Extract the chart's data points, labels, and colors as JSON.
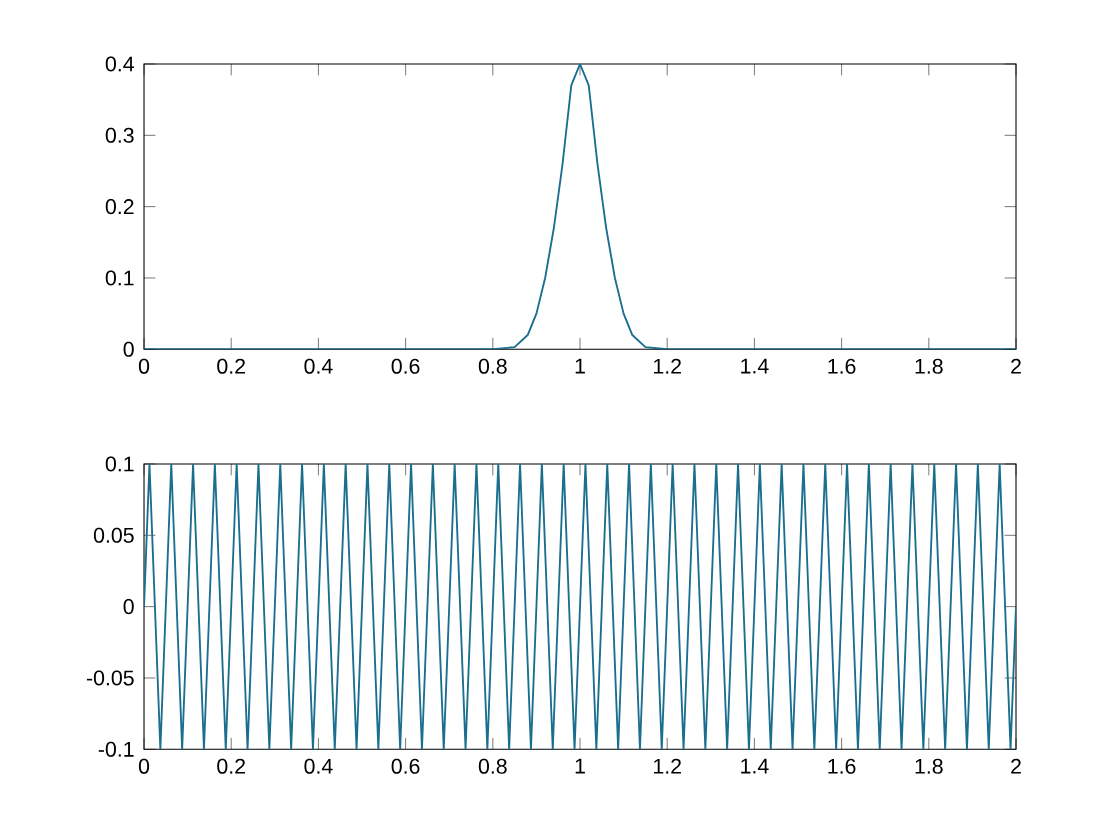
{
  "chart_data": [
    {
      "type": "line",
      "x": [
        0,
        0.2,
        0.4,
        0.6,
        0.8,
        0.85,
        0.88,
        0.9,
        0.92,
        0.94,
        0.96,
        0.98,
        1.0,
        1.02,
        1.04,
        1.06,
        1.08,
        1.1,
        1.12,
        1.15,
        1.2,
        1.4,
        1.6,
        1.8,
        2.0
      ],
      "series": [
        {
          "color": "#1a6e8e",
          "values": [
            0,
            0,
            0,
            0,
            0,
            0.003,
            0.02,
            0.05,
            0.1,
            0.17,
            0.26,
            0.37,
            0.4,
            0.37,
            0.26,
            0.17,
            0.1,
            0.05,
            0.02,
            0.003,
            0,
            0,
            0,
            0,
            0
          ]
        }
      ],
      "xlim": [
        0,
        2
      ],
      "ylim": [
        0,
        0.4
      ],
      "xticks": [
        0,
        0.2,
        0.4,
        0.6,
        0.8,
        1,
        1.2,
        1.4,
        1.6,
        1.8,
        2
      ],
      "yticks": [
        0,
        0.1,
        0.2,
        0.3,
        0.4
      ]
    },
    {
      "type": "line",
      "x": [
        0,
        0.0125,
        0.0375,
        0.0625,
        0.0875,
        0.1125,
        0.1375,
        0.1625,
        0.1875,
        0.2125,
        0.2375,
        0.2625,
        0.2875,
        0.3125,
        0.3375,
        0.3625,
        0.3875,
        0.4125,
        0.4375,
        0.4625,
        0.4875,
        0.5125,
        0.5375,
        0.5625,
        0.5875,
        0.6125,
        0.6375,
        0.6625,
        0.6875,
        0.7125,
        0.7375,
        0.7625,
        0.7875,
        0.8125,
        0.8375,
        0.8625,
        0.8875,
        0.9125,
        0.9375,
        0.9625,
        0.9875,
        1.0125,
        1.0375,
        1.0625,
        1.0875,
        1.1125,
        1.1375,
        1.1625,
        1.1875,
        1.2125,
        1.2375,
        1.2625,
        1.2875,
        1.3125,
        1.3375,
        1.3625,
        1.3875,
        1.4125,
        1.4375,
        1.4625,
        1.4875,
        1.5125,
        1.5375,
        1.5625,
        1.5875,
        1.6125,
        1.6375,
        1.6625,
        1.6875,
        1.7125,
        1.7375,
        1.7625,
        1.7875,
        1.8125,
        1.8375,
        1.8625,
        1.8875,
        1.9125,
        1.9375,
        1.9625,
        1.9875,
        2
      ],
      "series": [
        {
          "color": "#1a6e8e",
          "values": [
            0,
            0.1,
            -0.1,
            0.1,
            -0.1,
            0.1,
            -0.1,
            0.1,
            -0.1,
            0.1,
            -0.1,
            0.1,
            -0.1,
            0.1,
            -0.1,
            0.1,
            -0.1,
            0.1,
            -0.1,
            0.1,
            -0.1,
            0.1,
            -0.1,
            0.1,
            -0.1,
            0.1,
            -0.1,
            0.1,
            -0.1,
            0.1,
            -0.1,
            0.1,
            -0.1,
            0.1,
            -0.1,
            0.1,
            -0.1,
            0.1,
            -0.1,
            0.1,
            -0.1,
            0.1,
            -0.1,
            0.1,
            -0.1,
            0.1,
            -0.1,
            0.1,
            -0.1,
            0.1,
            -0.1,
            0.1,
            -0.1,
            0.1,
            -0.1,
            0.1,
            -0.1,
            0.1,
            -0.1,
            0.1,
            -0.1,
            0.1,
            -0.1,
            0.1,
            -0.1,
            0.1,
            -0.1,
            0.1,
            -0.1,
            0.1,
            -0.1,
            0.1,
            -0.1,
            0.1,
            -0.1,
            0.1,
            -0.1,
            0.1,
            -0.1,
            0.1,
            -0.1,
            0
          ]
        }
      ],
      "xlim": [
        0,
        2
      ],
      "ylim": [
        -0.1,
        0.1
      ],
      "xticks": [
        0,
        0.2,
        0.4,
        0.6,
        0.8,
        1,
        1.2,
        1.4,
        1.6,
        1.8,
        2
      ],
      "yticks": [
        -0.1,
        -0.05,
        0,
        0.05,
        0.1
      ]
    }
  ]
}
